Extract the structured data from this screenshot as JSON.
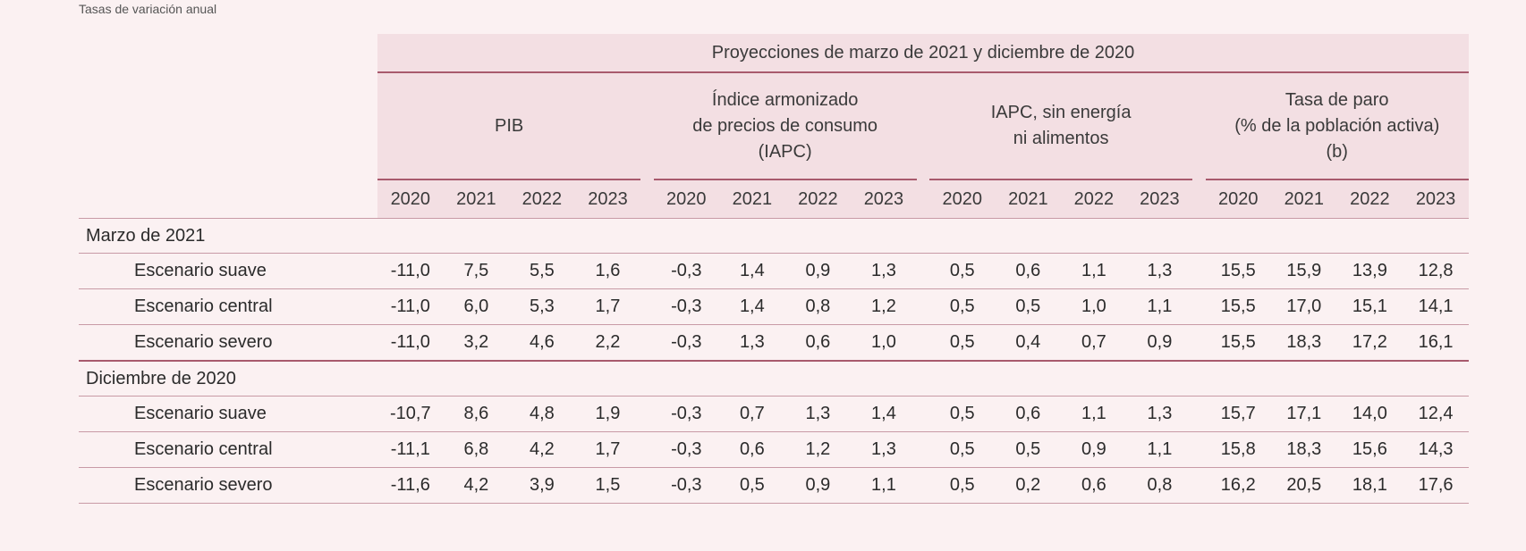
{
  "subtitle": "Tasas de variación anual",
  "table": {
    "top_header": "Proyecciones de marzo de 2021 y diciembre de 2020",
    "groups": [
      {
        "label_lines": [
          "PIB"
        ]
      },
      {
        "label_lines": [
          "Índice armonizado",
          "de precios de consumo",
          "(IAPC)"
        ]
      },
      {
        "label_lines": [
          "IAPC, sin energía",
          "ni alimentos"
        ]
      },
      {
        "label_lines": [
          "Tasa de paro",
          "(% de la población activa)",
          "(b)"
        ]
      }
    ],
    "years": [
      "2020",
      "2021",
      "2022",
      "2023"
    ],
    "sections": [
      {
        "label": "Marzo de 2021",
        "rows": [
          {
            "label": "Escenario suave",
            "values": [
              "-11,0",
              "7,5",
              "5,5",
              "1,6",
              "-0,3",
              "1,4",
              "0,9",
              "1,3",
              "0,5",
              "0,6",
              "1,1",
              "1,3",
              "15,5",
              "15,9",
              "13,9",
              "12,8"
            ]
          },
          {
            "label": "Escenario central",
            "values": [
              "-11,0",
              "6,0",
              "5,3",
              "1,7",
              "-0,3",
              "1,4",
              "0,8",
              "1,2",
              "0,5",
              "0,5",
              "1,0",
              "1,1",
              "15,5",
              "17,0",
              "15,1",
              "14,1"
            ]
          },
          {
            "label": "Escenario severo",
            "values": [
              "-11,0",
              "3,2",
              "4,6",
              "2,2",
              "-0,3",
              "1,3",
              "0,6",
              "1,0",
              "0,5",
              "0,4",
              "0,7",
              "0,9",
              "15,5",
              "18,3",
              "17,2",
              "16,1"
            ]
          }
        ]
      },
      {
        "label": "Diciembre de 2020",
        "rows": [
          {
            "label": "Escenario suave",
            "values": [
              "-10,7",
              "8,6",
              "4,8",
              "1,9",
              "-0,3",
              "0,7",
              "1,3",
              "1,4",
              "0,5",
              "0,6",
              "1,1",
              "1,3",
              "15,7",
              "17,1",
              "14,0",
              "12,4"
            ]
          },
          {
            "label": "Escenario central",
            "values": [
              "-11,1",
              "6,8",
              "4,2",
              "1,7",
              "-0,3",
              "0,6",
              "1,2",
              "1,3",
              "0,5",
              "0,5",
              "0,9",
              "1,1",
              "15,8",
              "18,3",
              "15,6",
              "14,3"
            ]
          },
          {
            "label": "Escenario severo",
            "values": [
              "-11,6",
              "4,2",
              "3,9",
              "1,5",
              "-0,3",
              "0,5",
              "0,9",
              "1,1",
              "0,5",
              "0,2",
              "0,6",
              "0,8",
              "16,2",
              "20,5",
              "18,1",
              "17,6"
            ]
          }
        ]
      }
    ]
  }
}
